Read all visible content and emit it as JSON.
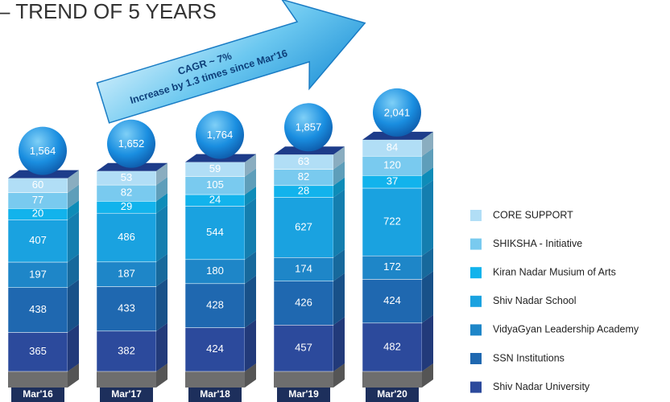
{
  "chart_data": {
    "type": "stacked_bar_3d",
    "title": "– TREND OF 5 YEARS",
    "annotations": [
      "CAGR ~ 7%",
      "Increase by 1.3 times since Mar'16"
    ],
    "categories": [
      "Mar'16",
      "Mar'17",
      "Mar'18",
      "Mar'19",
      "Mar'20"
    ],
    "series": [
      {
        "name": "Shiv Nadar University",
        "color": "#2c4a9c",
        "values": [
          365,
          382,
          424,
          457,
          482
        ]
      },
      {
        "name": "SSN Institutions",
        "color": "#1f68b0",
        "values": [
          438,
          433,
          428,
          426,
          424
        ]
      },
      {
        "name": "VidyaGyan Leadership Academy",
        "color": "#1e86c8",
        "values": [
          197,
          187,
          180,
          174,
          172
        ]
      },
      {
        "name": "Shiv Nadar School",
        "color": "#1aa2e0",
        "values": [
          407,
          486,
          544,
          627,
          722
        ]
      },
      {
        "name": "Kiran Nadar Musium of Arts",
        "color": "#12b3ec",
        "values": [
          20,
          29,
          24,
          28,
          37
        ]
      },
      {
        "name": "SHIKSHA - Initiative",
        "color": "#79caef",
        "values": [
          77,
          82,
          105,
          82,
          120
        ]
      },
      {
        "name": "CORE SUPPORT",
        "color": "#b1def6",
        "values": [
          60,
          53,
          59,
          63,
          84
        ]
      }
    ],
    "totals": {
      "values": [
        1564,
        1652,
        1764,
        1857,
        2041
      ],
      "value_labels": [
        "1,564",
        "1,652",
        "1,764",
        "1,857",
        "2,041"
      ]
    }
  }
}
